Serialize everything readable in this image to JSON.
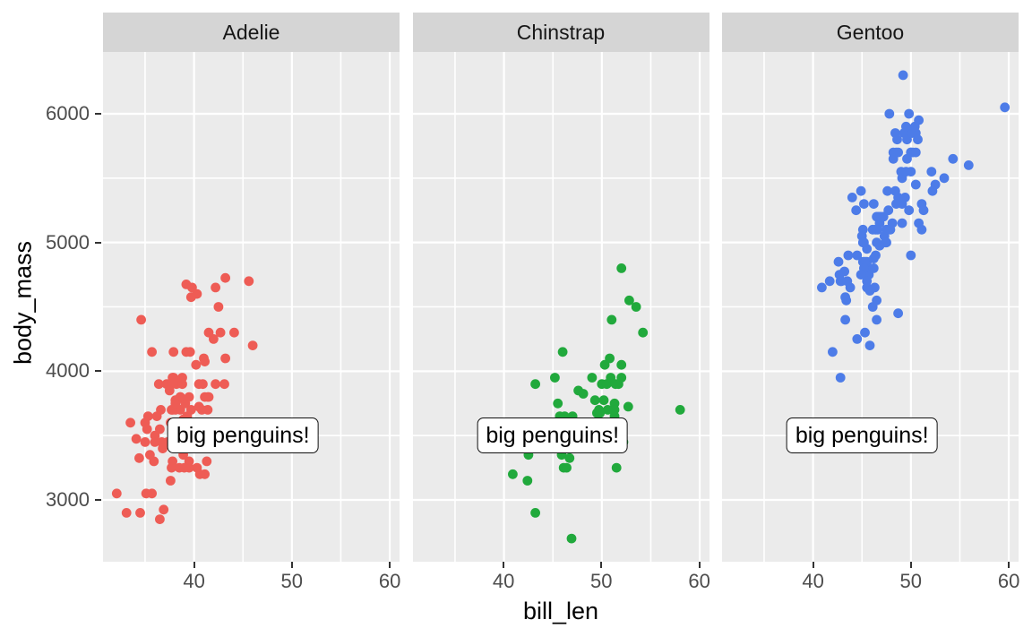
{
  "figure": {
    "xlabel": "bill_len",
    "ylabel": "body_mass",
    "colors": {
      "panel_bg": "#EBEBEB",
      "strip_bg": "#D5D5D5",
      "gridline": "#FFFFFF",
      "tick_label_text": "#4D4D4D",
      "axis_title_text": "#000000",
      "annotation_border": "#111111",
      "annotation_bg": "#FFFFFF"
    }
  },
  "chart_data": {
    "type": "scatter",
    "title": "",
    "xlabel": "bill_len",
    "ylabel": "body_mass",
    "xlim": [
      30.7,
      61.0
    ],
    "ylim": [
      2520,
      6480
    ],
    "x_ticks": [
      40,
      50,
      60
    ],
    "y_ticks": [
      3000,
      4000,
      5000,
      6000
    ],
    "x_minor_gridlines": [
      35,
      45,
      55
    ],
    "y_minor_gridlines": [
      3500,
      4500,
      5500
    ],
    "grid": "on",
    "legend": "none",
    "annotation": {
      "text": "big penguins!",
      "x": 45,
      "y": 3500,
      "shown_in_every_facet": true
    },
    "facets": [
      {
        "label": "Adelie",
        "color": "#EE5C55",
        "points": [
          [
            39.1,
            3750
          ],
          [
            39.5,
            3800
          ],
          [
            40.3,
            3250
          ],
          [
            36.7,
            3450
          ],
          [
            39.3,
            3650
          ],
          [
            38.9,
            3625
          ],
          [
            39.2,
            4675
          ],
          [
            34.1,
            3475
          ],
          [
            42.0,
            4250
          ],
          [
            37.8,
            3300
          ],
          [
            37.8,
            3700
          ],
          [
            41.1,
            3200
          ],
          [
            38.6,
            3800
          ],
          [
            34.6,
            4400
          ],
          [
            36.6,
            3700
          ],
          [
            38.7,
            3450
          ],
          [
            42.5,
            4500
          ],
          [
            34.4,
            3325
          ],
          [
            46.0,
            4200
          ],
          [
            37.8,
            3950
          ],
          [
            37.7,
            3250
          ],
          [
            35.9,
            3300
          ],
          [
            38.2,
            3900
          ],
          [
            38.8,
            3900
          ],
          [
            35.3,
            3650
          ],
          [
            40.6,
            3525
          ],
          [
            40.5,
            3725
          ],
          [
            37.9,
            3950
          ],
          [
            40.5,
            3900
          ],
          [
            39.5,
            3250
          ],
          [
            37.2,
            3900
          ],
          [
            39.5,
            3300
          ],
          [
            40.9,
            3900
          ],
          [
            36.4,
            3900
          ],
          [
            39.2,
            4150
          ],
          [
            38.8,
            3400
          ],
          [
            42.2,
            4650
          ],
          [
            37.6,
            3600
          ],
          [
            39.8,
            4650
          ],
          [
            36.5,
            3550
          ],
          [
            40.8,
            3700
          ],
          [
            38.1,
            3450
          ],
          [
            40.3,
            4600
          ],
          [
            33.1,
            2900
          ],
          [
            43.2,
            4100
          ],
          [
            35.0,
            3600
          ],
          [
            41.0,
            4100
          ],
          [
            37.7,
            3900
          ],
          [
            37.8,
            3575
          ],
          [
            37.9,
            4150
          ],
          [
            39.7,
            3700
          ],
          [
            38.6,
            3800
          ],
          [
            38.2,
            3775
          ],
          [
            38.1,
            3700
          ],
          [
            43.2,
            4725
          ],
          [
            38.1,
            3775
          ],
          [
            45.6,
            4700
          ],
          [
            39.7,
            4575
          ],
          [
            42.2,
            3900
          ],
          [
            39.6,
            4150
          ],
          [
            42.7,
            4300
          ],
          [
            38.6,
            3700
          ],
          [
            37.3,
            3450
          ],
          [
            35.7,
            4150
          ],
          [
            41.1,
            3800
          ],
          [
            36.2,
            3650
          ],
          [
            37.7,
            3700
          ],
          [
            40.2,
            4050
          ],
          [
            41.4,
            3800
          ],
          [
            35.2,
            3550
          ],
          [
            40.6,
            3500
          ],
          [
            38.8,
            3950
          ],
          [
            41.5,
            3800
          ],
          [
            39.0,
            3250
          ],
          [
            44.1,
            4300
          ],
          [
            38.5,
            3250
          ],
          [
            43.1,
            3900
          ],
          [
            36.8,
            3400
          ],
          [
            37.5,
            3850
          ],
          [
            38.1,
            3750
          ],
          [
            41.1,
            4075
          ],
          [
            35.1,
            3050
          ],
          [
            34.5,
            2900
          ],
          [
            36.5,
            2850
          ],
          [
            36.0,
            3500
          ],
          [
            36.0,
            3450
          ],
          [
            41.5,
            4300
          ],
          [
            35.0,
            3450
          ],
          [
            41.4,
            3700
          ],
          [
            39.0,
            3550
          ],
          [
            40.6,
            3200
          ],
          [
            37.6,
            3150
          ],
          [
            41.3,
            3300
          ],
          [
            32.1,
            3050
          ],
          [
            33.5,
            3600
          ],
          [
            35.7,
            3050
          ],
          [
            36.9,
            2925
          ],
          [
            39.6,
            3500
          ],
          [
            35.5,
            3350
          ],
          [
            38.9,
            3350
          ]
        ]
      },
      {
        "label": "Chinstrap",
        "color": "#21A93C",
        "points": [
          [
            46.5,
            3500
          ],
          [
            50.0,
            3900
          ],
          [
            51.3,
            3650
          ],
          [
            45.4,
            3525
          ],
          [
            52.7,
            3725
          ],
          [
            45.2,
            3950
          ],
          [
            46.1,
            3250
          ],
          [
            51.3,
            3750
          ],
          [
            46.0,
            4150
          ],
          [
            51.3,
            3700
          ],
          [
            46.6,
            3500
          ],
          [
            51.7,
            3900
          ],
          [
            47.0,
            3650
          ],
          [
            52.0,
            4050
          ],
          [
            45.9,
            3350
          ],
          [
            50.5,
            3900
          ],
          [
            50.3,
            4050
          ],
          [
            58.0,
            3700
          ],
          [
            46.4,
            3450
          ],
          [
            49.2,
            3550
          ],
          [
            42.4,
            3150
          ],
          [
            48.5,
            3400
          ],
          [
            43.2,
            3900
          ],
          [
            50.6,
            3700
          ],
          [
            46.7,
            3325
          ],
          [
            52.0,
            3950
          ],
          [
            50.5,
            3400
          ],
          [
            49.5,
            3675
          ],
          [
            46.4,
            3250
          ],
          [
            52.8,
            4550
          ],
          [
            40.9,
            3200
          ],
          [
            54.2,
            4300
          ],
          [
            42.5,
            3350
          ],
          [
            51.0,
            4400
          ],
          [
            49.7,
            3700
          ],
          [
            47.5,
            3525
          ],
          [
            47.6,
            3850
          ],
          [
            52.0,
            4800
          ],
          [
            46.9,
            2700
          ],
          [
            53.5,
            4500
          ],
          [
            49.0,
            3950
          ],
          [
            46.2,
            3650
          ],
          [
            50.9,
            3950
          ],
          [
            45.5,
            3750
          ],
          [
            50.9,
            3600
          ],
          [
            50.8,
            4100
          ],
          [
            50.1,
            3400
          ],
          [
            49.0,
            3425
          ],
          [
            51.5,
            3250
          ],
          [
            49.8,
            3675
          ],
          [
            48.1,
            3825
          ],
          [
            51.4,
            3900
          ],
          [
            45.7,
            3650
          ],
          [
            50.7,
            3600
          ],
          [
            43.5,
            3400
          ],
          [
            52.2,
            3450
          ],
          [
            45.2,
            3550
          ],
          [
            49.3,
            3775
          ],
          [
            50.2,
            3775
          ],
          [
            43.2,
            2900
          ]
        ]
      },
      {
        "label": "Gentoo",
        "color": "#4D7CE8",
        "points": [
          [
            46.1,
            4500
          ],
          [
            50.0,
            5700
          ],
          [
            48.7,
            4450
          ],
          [
            50.0,
            5700
          ],
          [
            47.6,
            5400
          ],
          [
            46.5,
            4550
          ],
          [
            45.4,
            4800
          ],
          [
            46.7,
            5200
          ],
          [
            43.3,
            4400
          ],
          [
            46.8,
            5150
          ],
          [
            40.9,
            4650
          ],
          [
            49.0,
            5550
          ],
          [
            45.5,
            4650
          ],
          [
            48.4,
            5850
          ],
          [
            45.8,
            4200
          ],
          [
            49.3,
            5850
          ],
          [
            42.0,
            4150
          ],
          [
            49.2,
            6300
          ],
          [
            46.2,
            4800
          ],
          [
            48.7,
            5350
          ],
          [
            50.2,
            5700
          ],
          [
            45.1,
            5000
          ],
          [
            46.5,
            4400
          ],
          [
            46.3,
            4650
          ],
          [
            42.9,
            4700
          ],
          [
            46.1,
            5100
          ],
          [
            44.5,
            4250
          ],
          [
            47.8,
            6000
          ],
          [
            48.2,
            5700
          ],
          [
            50.0,
            4900
          ],
          [
            47.3,
            5050
          ],
          [
            42.8,
            4700
          ],
          [
            45.1,
            5100
          ],
          [
            59.6,
            6050
          ],
          [
            49.1,
            5500
          ],
          [
            48.4,
            5400
          ],
          [
            42.6,
            4850
          ],
          [
            44.4,
            5250
          ],
          [
            44.0,
            5350
          ],
          [
            48.7,
            5700
          ],
          [
            42.7,
            4750
          ],
          [
            49.6,
            5650
          ],
          [
            45.3,
            4300
          ],
          [
            49.6,
            5800
          ],
          [
            50.5,
            5700
          ],
          [
            43.6,
            4900
          ],
          [
            45.5,
            4950
          ],
          [
            50.5,
            5850
          ],
          [
            44.9,
            5400
          ],
          [
            45.2,
            5300
          ],
          [
            46.6,
            5100
          ],
          [
            48.5,
            5700
          ],
          [
            45.1,
            4850
          ],
          [
            50.1,
            5850
          ],
          [
            46.5,
            5200
          ],
          [
            45.0,
            5050
          ],
          [
            43.8,
            4650
          ],
          [
            45.5,
            4850
          ],
          [
            43.2,
            4775
          ],
          [
            50.4,
            5900
          ],
          [
            45.3,
            4850
          ],
          [
            46.2,
            5300
          ],
          [
            45.7,
            4750
          ],
          [
            54.3,
            5650
          ],
          [
            45.8,
            4625
          ],
          [
            49.8,
            6000
          ],
          [
            46.2,
            4875
          ],
          [
            49.5,
            5900
          ],
          [
            43.5,
            4700
          ],
          [
            50.7,
            5800
          ],
          [
            47.7,
            5250
          ],
          [
            46.4,
            5100
          ],
          [
            48.2,
            5650
          ],
          [
            46.5,
            5000
          ],
          [
            46.4,
            4900
          ],
          [
            48.6,
            5800
          ],
          [
            47.5,
            5000
          ],
          [
            51.1,
            5300
          ],
          [
            45.2,
            4800
          ],
          [
            45.2,
            5000
          ],
          [
            49.1,
            5300
          ],
          [
            52.5,
            5450
          ],
          [
            47.4,
            5000
          ],
          [
            50.0,
            5550
          ],
          [
            44.9,
            4750
          ],
          [
            50.8,
            5950
          ],
          [
            43.4,
            4550
          ],
          [
            51.3,
            5250
          ],
          [
            47.5,
            5100
          ],
          [
            52.1,
            5550
          ],
          [
            47.9,
            5100
          ],
          [
            52.2,
            5400
          ],
          [
            45.5,
            4700
          ],
          [
            49.5,
            5550
          ],
          [
            44.5,
            4900
          ],
          [
            50.8,
            5150
          ],
          [
            49.4,
            5350
          ],
          [
            46.9,
            5200
          ],
          [
            51.1,
            5100
          ],
          [
            48.5,
            5300
          ],
          [
            55.9,
            5600
          ],
          [
            47.2,
            5200
          ],
          [
            49.1,
            5150
          ],
          [
            46.8,
            4975
          ],
          [
            41.7,
            4700
          ],
          [
            53.4,
            5500
          ],
          [
            43.3,
            4575
          ],
          [
            48.1,
            5150
          ],
          [
            50.5,
            5450
          ],
          [
            49.8,
            5250
          ],
          [
            42.8,
            3950
          ]
        ]
      }
    ]
  }
}
